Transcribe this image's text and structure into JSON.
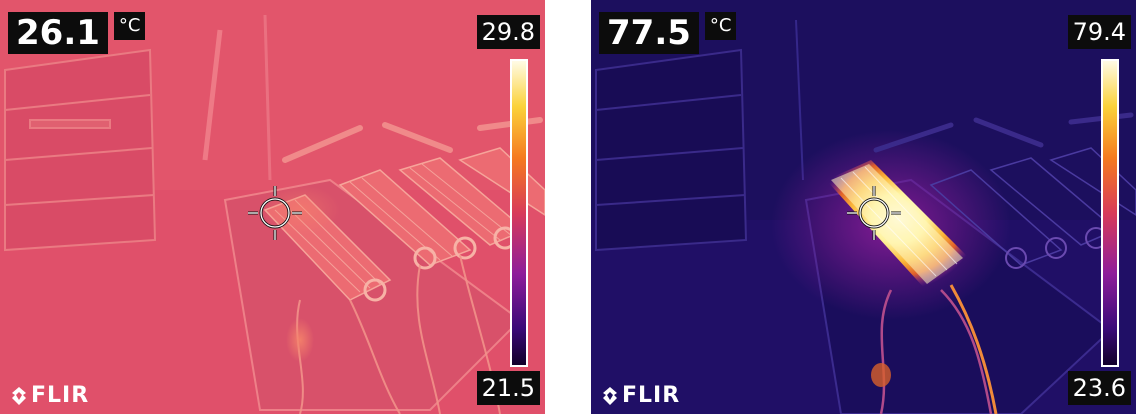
{
  "left_panel": {
    "spot_temperature": "26.1",
    "unit": "°C",
    "scale_max": "29.8",
    "scale_min": "21.5",
    "logo": "FLIR",
    "colors": {
      "background": "#e0506a",
      "accent": "#f36f6a",
      "highlight": "#ffd06a"
    }
  },
  "right_panel": {
    "spot_temperature": "77.5",
    "unit": "°C",
    "scale_max": "79.4",
    "scale_min": "23.6",
    "logo": "FLIR",
    "colors": {
      "background": "#1c0f5e",
      "accent": "#9b2fa0",
      "highlight": "#fffbe0"
    }
  },
  "palette": {
    "ironbow": [
      "#12002a",
      "#3a0a78",
      "#8e1d9a",
      "#d83b5a",
      "#f57a20",
      "#fbd23a",
      "#fffbe6"
    ]
  },
  "icons": {
    "crosshair": "crosshair-icon",
    "logo": "flir-flame-icon"
  }
}
